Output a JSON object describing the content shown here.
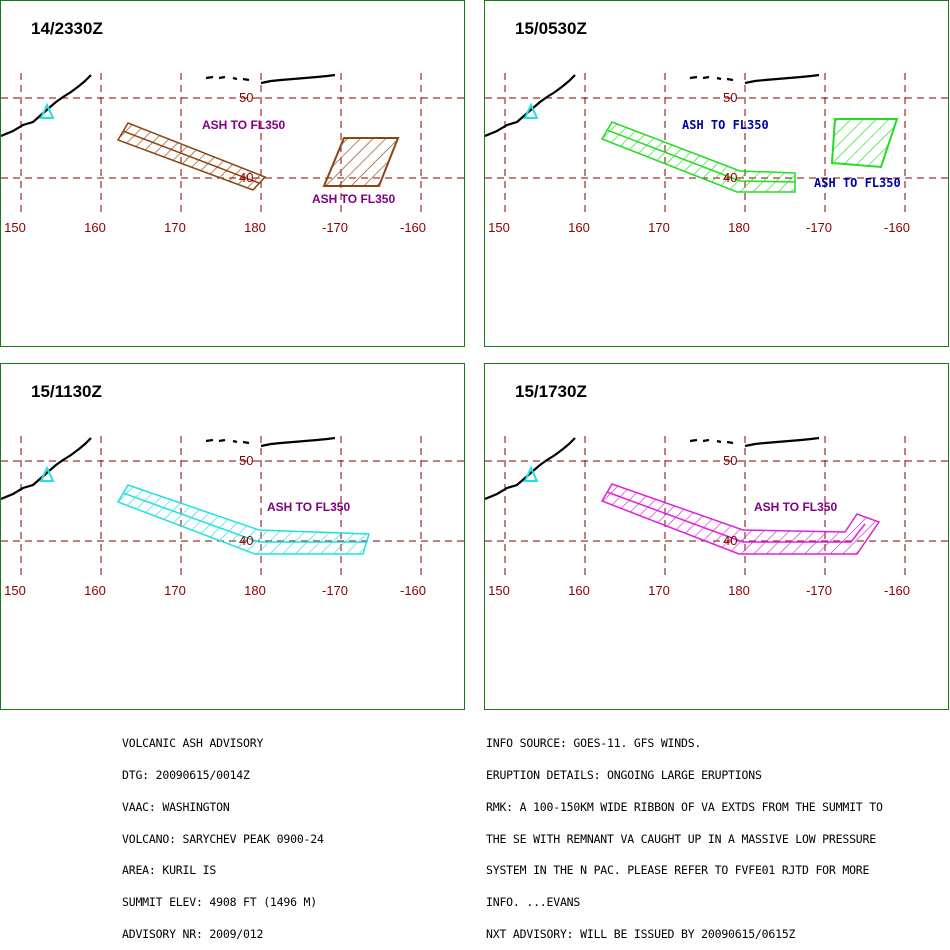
{
  "panels": [
    {
      "time": "14/2330Z",
      "color": "#8b4513",
      "labels": [
        {
          "text": "ASH TO FL350",
          "color": "#800080"
        },
        {
          "text": "ASH TO FL350",
          "color": "#800080"
        }
      ]
    },
    {
      "time": "15/0530Z",
      "color": "#22dd22",
      "labels": [
        {
          "text": "ASH TO FL350",
          "color": "#0000aa"
        },
        {
          "text": "ASH TO FL350",
          "color": "#0000aa"
        }
      ]
    },
    {
      "time": "15/1130Z",
      "color": "#22e0e0",
      "labels": [
        {
          "text": "ASH TO FL350",
          "color": "#800080"
        }
      ]
    },
    {
      "time": "15/1730Z",
      "color": "#dd22dd",
      "labels": [
        {
          "text": "ASH TO FL350",
          "color": "#800080"
        }
      ]
    }
  ],
  "grid": {
    "lat_labels": [
      "50",
      "40"
    ],
    "lon_labels": [
      "150",
      "160",
      "170",
      "180",
      "-170",
      "-160"
    ],
    "line_color": "#8b0000"
  },
  "advisory": {
    "left": [
      "VOLCANIC ASH ADVISORY",
      "DTG: 20090615/0014Z",
      "VAAC: WASHINGTON",
      "VOLCANO: SARYCHEV PEAK 0900-24",
      "AREA: KURIL IS",
      "SUMMIT ELEV: 4908 FT (1496 M)",
      "ADVISORY NR: 2009/012"
    ],
    "right": [
      "INFO SOURCE: GOES-11. GFS WINDS.",
      "ERUPTION DETAILS: ONGOING LARGE ERUPTIONS",
      "RMK: A 100-150KM WIDE RIBBON OF VA EXTDS FROM THE SUMMIT TO",
      "THE SE WITH REMNANT VA CAUGHT UP IN A MASSIVE LOW PRESSURE",
      "SYSTEM IN THE N PAC. PLEASE REFER TO FVFE01 RJTD FOR MORE",
      "INFO. ...EVANS",
      "NXT ADVISORY: WILL BE ISSUED BY 20090615/0615Z"
    ]
  }
}
